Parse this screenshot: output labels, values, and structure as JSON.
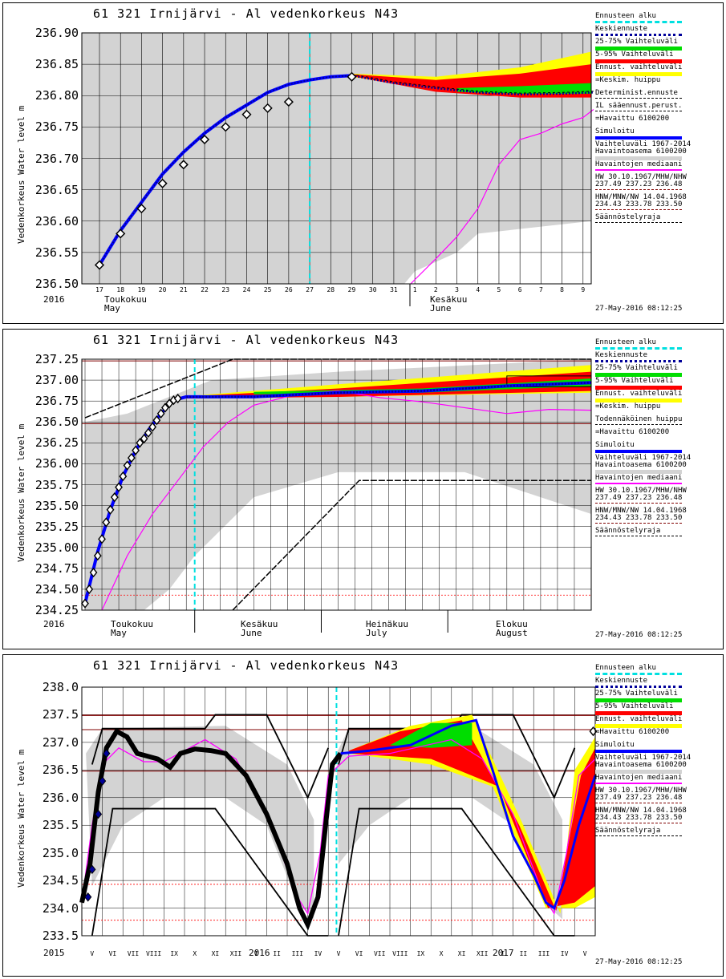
{
  "colors": {
    "grey": "#d3d3d3",
    "red": "#ff0000",
    "yellow": "#ffff00",
    "green": "#00dd00",
    "blue": "#0000ff",
    "navy": "#000099",
    "cyan": "#00e0e0",
    "magenta": "#ff00ff",
    "black": "#000000",
    "darkred": "#800000"
  },
  "legend": [
    {
      "label": "Ennusteen alku",
      "style": "cyan-dash"
    },
    {
      "label": "Keskiennuste",
      "style": "navy-dot"
    },
    {
      "label": "25-75% Vaihteluväli",
      "style": "green"
    },
    {
      "label": "5-95% Vaihteluväli",
      "style": "red"
    },
    {
      "label": "Ennust. vaihteluväli",
      "style": "yellow"
    },
    {
      "label": "=Keskim. huippu",
      "style": "plus"
    },
    {
      "label": "Determinist.ennuste",
      "style": "black-dot"
    },
    {
      "label": "IL sääennust.perust.",
      "style": "black-dot2"
    },
    {
      "label": "=Havaittu 6100200",
      "style": "diamond"
    },
    {
      "label": "Simuloitu",
      "style": "blue"
    },
    {
      "label": "Vaihteluväli 1967-2014",
      "style": "none"
    },
    {
      "label": "Havaintoasema 6100200",
      "style": "grey"
    },
    {
      "label": "Havaintojen mediaani",
      "style": "magenta"
    },
    {
      "label": "HW 30.10.1967/MHW/NHW",
      "style": "none"
    },
    {
      "label": "237.49 237.23 236.48",
      "style": "darkred-dash"
    },
    {
      "label": "HNW/MNW/NW 14.04.1968",
      "style": "none"
    },
    {
      "label": "234.43 233.78 233.50",
      "style": "darkred-dash"
    },
    {
      "label": "Säännöstelyraja",
      "style": "black-dash"
    }
  ],
  "legend2_override": {
    "6": "Todennäköinen huippu"
  },
  "timestamp": "27-May-2016 08:12:25",
  "chart_data": [
    {
      "type": "line",
      "title": "61 321 Irnijärvi - Al vedenkorkeus N43",
      "ylabel": "Vedenkorkeus Water level m",
      "ylim": [
        236.5,
        236.9
      ],
      "yticks": [
        "236.90",
        "236.85",
        "236.80",
        "236.75",
        "236.70",
        "236.65",
        "236.60",
        "236.55",
        "236.50"
      ],
      "xticks": [
        "17",
        "18",
        "19",
        "20",
        "21",
        "22",
        "23",
        "24",
        "25",
        "26",
        "27",
        "28",
        "29",
        "30",
        "31",
        "1",
        "2",
        "3",
        "4",
        "5",
        "6",
        "7",
        "8",
        "9"
      ],
      "year": "2016",
      "months": [
        {
          "fi": "Toukokuu",
          "en": "May"
        },
        {
          "fi": "Kesäkuu",
          "en": "June"
        }
      ],
      "forecast_start": "27",
      "observed": [
        [
          0,
          236.53
        ],
        [
          1,
          236.58
        ],
        [
          2,
          236.62
        ],
        [
          3,
          236.66
        ],
        [
          4,
          236.69
        ],
        [
          5,
          236.73
        ],
        [
          6,
          236.75
        ],
        [
          7,
          236.77
        ],
        [
          8,
          236.78
        ],
        [
          9,
          236.79
        ],
        [
          12,
          236.83
        ]
      ],
      "simulated": [
        [
          0,
          236.53
        ],
        [
          1,
          236.585
        ],
        [
          2,
          236.63
        ],
        [
          3,
          236.675
        ],
        [
          4,
          236.71
        ],
        [
          5,
          236.74
        ],
        [
          6,
          236.765
        ],
        [
          7,
          236.785
        ],
        [
          8,
          236.805
        ],
        [
          9,
          236.818
        ],
        [
          10,
          236.825
        ],
        [
          11,
          236.83
        ],
        [
          12,
          236.832
        ]
      ],
      "forecast_mean": [
        [
          12,
          236.832
        ],
        [
          14,
          236.82
        ],
        [
          16,
          236.812
        ],
        [
          18,
          236.805
        ],
        [
          20,
          236.802
        ],
        [
          22,
          236.803
        ],
        [
          23.5,
          236.805
        ]
      ],
      "median": [
        [
          14.8,
          236.5
        ],
        [
          16,
          236.54
        ],
        [
          17,
          236.575
        ],
        [
          18,
          236.62
        ],
        [
          19,
          236.69
        ],
        [
          20,
          236.73
        ],
        [
          21,
          236.74
        ],
        [
          22,
          236.755
        ],
        [
          23,
          236.765
        ],
        [
          23.5,
          236.778
        ]
      ]
    },
    {
      "type": "line",
      "title": "61 321 Irnijärvi - Al vedenkorkeus N43",
      "ylabel": "Vedenkorkeus Water level m",
      "ylim": [
        234.25,
        237.25
      ],
      "yticks": [
        "237.25",
        "237.00",
        "236.75",
        "236.50",
        "236.25",
        "236.00",
        "235.75",
        "235.50",
        "235.25",
        "235.00",
        "234.75",
        "234.50",
        "234.25"
      ],
      "year": "2016",
      "months": [
        {
          "fi": "Toukokuu",
          "en": "May"
        },
        {
          "fi": "Kesäkuu",
          "en": "June"
        },
        {
          "fi": "Heinäkuu",
          "en": "July"
        },
        {
          "fi": "Elokuu",
          "en": "August"
        }
      ],
      "observed": [
        [
          0,
          234.33
        ],
        [
          1,
          234.5
        ],
        [
          2,
          234.7
        ],
        [
          3,
          234.9
        ],
        [
          4,
          235.1
        ],
        [
          5,
          235.3
        ],
        [
          6,
          235.45
        ],
        [
          7,
          235.6
        ],
        [
          8,
          235.72
        ],
        [
          9,
          235.85
        ],
        [
          10,
          235.98
        ],
        [
          11,
          236.07
        ],
        [
          12,
          236.16
        ],
        [
          13,
          236.25
        ],
        [
          14,
          236.3
        ],
        [
          15,
          236.37
        ],
        [
          16,
          236.44
        ],
        [
          17,
          236.52
        ],
        [
          18,
          236.6
        ],
        [
          19,
          236.67
        ],
        [
          20,
          236.72
        ],
        [
          21,
          236.76
        ],
        [
          22,
          236.78
        ]
      ],
      "simulated": [
        [
          0,
          234.33
        ],
        [
          3,
          234.95
        ],
        [
          6,
          235.45
        ],
        [
          9,
          235.85
        ],
        [
          12,
          236.16
        ],
        [
          15,
          236.4
        ],
        [
          18,
          236.6
        ],
        [
          21,
          236.76
        ],
        [
          24,
          236.8
        ],
        [
          30,
          236.8
        ],
        [
          40,
          236.8
        ],
        [
          60,
          236.85
        ],
        [
          80,
          236.87
        ],
        [
          100,
          236.93
        ],
        [
          120,
          236.97
        ]
      ],
      "median": [
        [
          4,
          234.25
        ],
        [
          10,
          234.9
        ],
        [
          16,
          235.4
        ],
        [
          22,
          235.8
        ],
        [
          28,
          236.2
        ],
        [
          34,
          236.5
        ],
        [
          40,
          236.7
        ],
        [
          50,
          236.83
        ],
        [
          60,
          236.87
        ],
        [
          70,
          236.79
        ],
        [
          80,
          236.74
        ],
        [
          100,
          236.6
        ],
        [
          110,
          236.65
        ],
        [
          120,
          236.64
        ]
      ]
    },
    {
      "type": "line",
      "title": "61 321 Irnijärvi - Al vedenkorkeus N43",
      "ylabel": "Vedenkorkeus Water level m",
      "ylim": [
        233.5,
        238.0
      ],
      "yticks": [
        "238.0",
        "237.5",
        "237.0",
        "236.5",
        "236.0",
        "235.5",
        "235.0",
        "234.5",
        "234.0",
        "233.5"
      ],
      "xticks": [
        "V",
        "VI",
        "VII",
        "VIII",
        "IX",
        "X",
        "XI",
        "XII",
        "I",
        "II",
        "III",
        "IV",
        "V",
        "VI",
        "VII",
        "VIII",
        "IX",
        "X",
        "XI",
        "XII",
        "I",
        "II",
        "III",
        "IV",
        "V"
      ],
      "years": [
        "2015",
        "2016",
        "2017"
      ]
    }
  ]
}
